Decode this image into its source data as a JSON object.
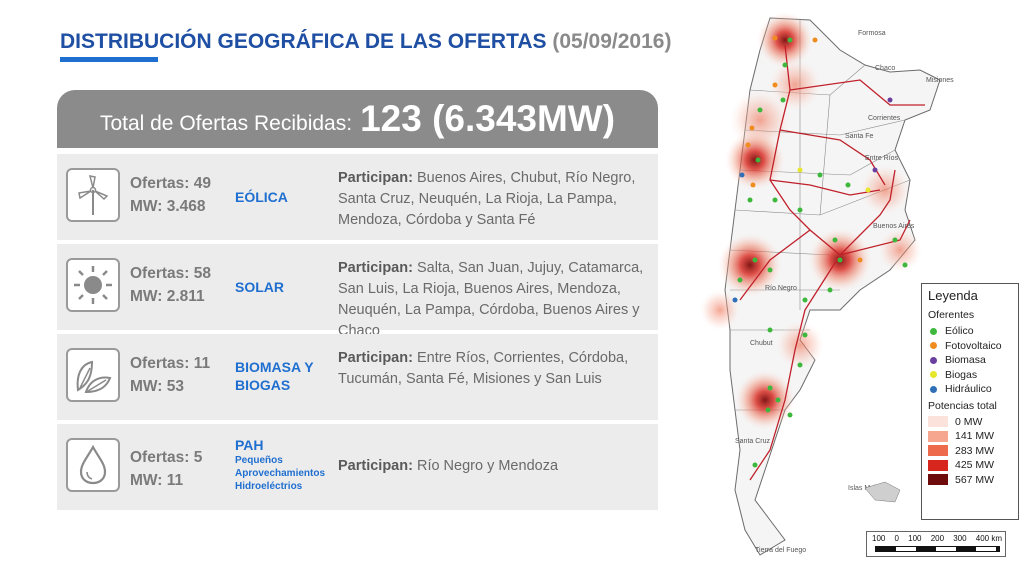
{
  "header": {
    "title": "DISTRIBUCIÓN GEOGRÁFICA DE LAS OFERTAS",
    "date": "(05/09/2016)"
  },
  "total": {
    "label": "Total de Ofertas Recibidas:",
    "value": "123 (6.343MW)"
  },
  "rows": [
    {
      "icon": "wind-turbine-icon",
      "offers": "Ofertas: 49",
      "mw": "MW: 3.468",
      "tech": "EÓLICA",
      "tech_sub": "",
      "part_label": "Participan:",
      "part_text": " Buenos Aires, Chubut, Río Negro, Santa Cruz, Neuquén, La Rioja, La Pampa, Mendoza, Córdoba y Santa Fé"
    },
    {
      "icon": "sun-icon",
      "offers": "Ofertas: 58",
      "mw": "MW: 2.811",
      "tech": "SOLAR",
      "tech_sub": "",
      "part_label": "Participan:",
      "part_text": " Salta, San Juan, Jujuy, Catamarca, San Luis, La Rioja, Buenos Aires, Mendoza, Neuquén, La Pampa, Córdoba, Buenos Aires y Chaco"
    },
    {
      "icon": "leaf-icon",
      "offers": "Ofertas: 11",
      "mw": "MW: 53",
      "tech": "BIOMASA Y BIOGAS",
      "tech_sub": "",
      "part_label": "Participan:",
      "part_text": " Entre Ríos, Corrientes, Córdoba, Tucumán, Santa Fé, Misiones y San Luis"
    },
    {
      "icon": "water-drop-icon",
      "offers": "Ofertas: 5",
      "mw": "MW: 11",
      "tech": "PAH",
      "tech_sub": "Pequeños Aprovechamientos Hidroeléctrios",
      "part_label": "Participan:",
      "part_text": " Río Negro y Mendoza"
    }
  ],
  "legend": {
    "title": "Leyenda",
    "section1": "Oferentes",
    "types": [
      {
        "label": "Eólico",
        "color": "#3db83d"
      },
      {
        "label": "Fotovoltaico",
        "color": "#f08c1e"
      },
      {
        "label": "Biomasa",
        "color": "#6b3fa0"
      },
      {
        "label": "Biogas",
        "color": "#e6e62a"
      },
      {
        "label": "Hidráulico",
        "color": "#2f6fb8"
      }
    ],
    "section2": "Potencias total",
    "powers": [
      {
        "label": "0 MW",
        "color": "#fbe3dc"
      },
      {
        "label": "141 MW",
        "color": "#f6a58f"
      },
      {
        "label": "283 MW",
        "color": "#ee6a4c"
      },
      {
        "label": "425 MW",
        "color": "#d7261d"
      },
      {
        "label": "567 MW",
        "color": "#6e0b0b"
      }
    ]
  },
  "scale_bar": {
    "ticks": [
      "100",
      "0",
      "100",
      "200",
      "300",
      "400 km"
    ]
  },
  "map_labels": {
    "formosa": "Formosa",
    "chaco": "Chaco",
    "misiones": "Misiones",
    "corrientes": "Corrientes",
    "santa_fe": "Santa Fe",
    "entre_rios": "Entre Ríos",
    "buenos_aires": "Buenos Aires",
    "rio_negro": "Río Negro",
    "chubut": "Chubut",
    "santa_cruz": "Santa Cruz",
    "tierra_fuego": "Tierra del Fuego",
    "islas": "Islas Malvinas"
  }
}
